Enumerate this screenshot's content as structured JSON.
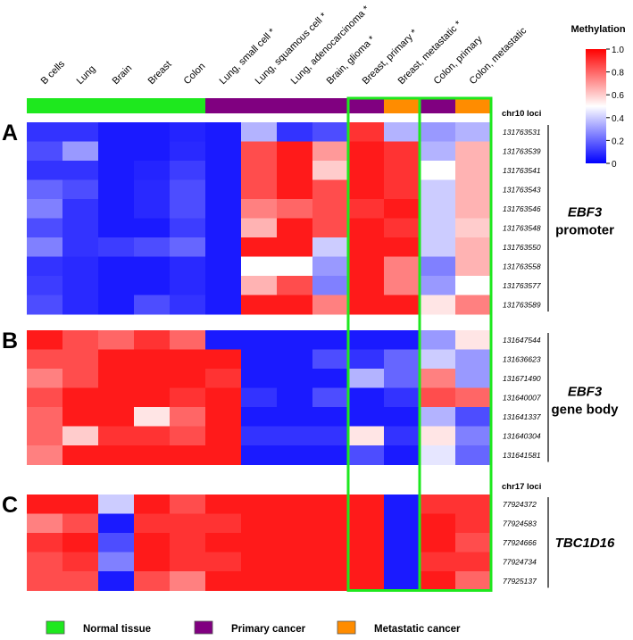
{
  "chart_data": {
    "type": "heatmap",
    "columns": [
      "B cells",
      "Lung",
      "Brain",
      "Breast",
      "Colon",
      "Lung, small cell *",
      "Lung, squamous cell *",
      "Lung, adenocarcinoma *",
      "Brain, glioma *",
      "Breast, primary *",
      "Breast, metastatic *",
      "Colon, primary",
      "Colon, metastatic"
    ],
    "column_groups": [
      "normal",
      "normal",
      "normal",
      "normal",
      "normal",
      "primary",
      "primary",
      "primary",
      "primary",
      "primary",
      "metastatic",
      "primary",
      "metastatic"
    ],
    "colorbar": {
      "title": "Methylation",
      "min": 0,
      "max": 1,
      "ticks": [
        "1.0",
        "0.8",
        "0.6",
        "0.4",
        "0.2",
        "0"
      ],
      "colors": [
        "#0000ff",
        "#ffffff",
        "#ff0000"
      ]
    },
    "legend": [
      {
        "label": "Normal tissue",
        "color": "#1ee81e"
      },
      {
        "label": "Primary cancer",
        "color": "#800080"
      },
      {
        "label": "Metastatic cancer",
        "color": "#ff8c00"
      }
    ],
    "headers": {
      "chr10": "chr10 loci",
      "chr17": "chr17 loci"
    },
    "panels": [
      {
        "letter": "A",
        "gene": "EBF3",
        "gene_sub": "promoter",
        "loci": [
          "131763531",
          "131763539",
          "131763541",
          "131763543",
          "131763546",
          "131763548",
          "131763550",
          "131763558",
          "131763577",
          "131763589"
        ],
        "values": [
          [
            0.1,
            0.1,
            0.05,
            0.05,
            0.07,
            0.05,
            0.35,
            0.1,
            0.15,
            0.9,
            0.35,
            0.3,
            0.35
          ],
          [
            0.15,
            0.3,
            0.05,
            0.05,
            0.08,
            0.05,
            0.85,
            0.95,
            0.7,
            0.95,
            0.9,
            0.35,
            0.65
          ],
          [
            0.1,
            0.1,
            0.05,
            0.07,
            0.12,
            0.05,
            0.85,
            0.95,
            0.6,
            0.95,
            0.9,
            0.5,
            0.65
          ],
          [
            0.2,
            0.15,
            0.05,
            0.08,
            0.15,
            0.05,
            0.85,
            0.95,
            0.85,
            0.95,
            0.9,
            0.4,
            0.65
          ],
          [
            0.25,
            0.1,
            0.05,
            0.08,
            0.15,
            0.05,
            0.75,
            0.8,
            0.85,
            0.9,
            0.95,
            0.4,
            0.65
          ],
          [
            0.15,
            0.1,
            0.05,
            0.05,
            0.12,
            0.05,
            0.65,
            0.95,
            0.85,
            0.95,
            0.9,
            0.4,
            0.6
          ],
          [
            0.25,
            0.1,
            0.12,
            0.15,
            0.2,
            0.05,
            0.95,
            0.95,
            0.4,
            0.95,
            0.95,
            0.4,
            0.65
          ],
          [
            0.1,
            0.08,
            0.05,
            0.05,
            0.08,
            0.05,
            0.5,
            0.5,
            0.3,
            0.95,
            0.75,
            0.25,
            0.65
          ],
          [
            0.12,
            0.08,
            0.05,
            0.05,
            0.08,
            0.05,
            0.65,
            0.85,
            0.25,
            0.95,
            0.75,
            0.3,
            0.5
          ],
          [
            0.15,
            0.08,
            0.05,
            0.15,
            0.1,
            0.05,
            0.95,
            0.95,
            0.75,
            0.95,
            0.95,
            0.55,
            0.75
          ]
        ]
      },
      {
        "letter": "B",
        "gene": "EBF3",
        "gene_sub": "gene body",
        "loci": [
          "131647544",
          "131636623",
          "131671490",
          "131640007",
          "131641337",
          "131640304",
          "131641581"
        ],
        "values": [
          [
            0.95,
            0.85,
            0.8,
            0.9,
            0.8,
            0.05,
            0.05,
            0.05,
            0.05,
            0.05,
            0.05,
            0.3,
            0.55
          ],
          [
            0.85,
            0.85,
            0.95,
            0.95,
            0.95,
            0.95,
            0.05,
            0.05,
            0.15,
            0.1,
            0.2,
            0.4,
            0.3
          ],
          [
            0.75,
            0.85,
            0.95,
            0.95,
            0.95,
            0.9,
            0.05,
            0.05,
            0.05,
            0.35,
            0.2,
            0.75,
            0.3
          ],
          [
            0.85,
            0.95,
            0.95,
            0.95,
            0.9,
            0.95,
            0.1,
            0.05,
            0.15,
            0.05,
            0.1,
            0.85,
            0.8
          ],
          [
            0.8,
            0.95,
            0.95,
            0.55,
            0.8,
            0.95,
            0.05,
            0.05,
            0.05,
            0.05,
            0.05,
            0.35,
            0.15
          ],
          [
            0.8,
            0.6,
            0.9,
            0.9,
            0.85,
            0.95,
            0.1,
            0.1,
            0.1,
            0.55,
            0.1,
            0.55,
            0.25
          ],
          [
            0.75,
            0.95,
            0.95,
            0.95,
            0.95,
            0.95,
            0.05,
            0.05,
            0.05,
            0.15,
            0.05,
            0.45,
            0.2
          ]
        ]
      },
      {
        "letter": "C",
        "gene": "TBC1D16",
        "gene_sub": "",
        "loci": [
          "77924372",
          "77924583",
          "77924666",
          "77924734",
          "77925137"
        ],
        "values": [
          [
            0.95,
            0.95,
            0.4,
            0.95,
            0.85,
            0.95,
            0.95,
            0.95,
            0.95,
            0.95,
            0.05,
            0.9,
            0.9
          ],
          [
            0.75,
            0.85,
            0.05,
            0.9,
            0.9,
            0.9,
            0.95,
            0.95,
            0.95,
            0.95,
            0.05,
            0.95,
            0.9
          ],
          [
            0.9,
            0.95,
            0.15,
            0.95,
            0.9,
            0.95,
            0.95,
            0.95,
            0.95,
            0.95,
            0.05,
            0.95,
            0.85
          ],
          [
            0.85,
            0.9,
            0.25,
            0.95,
            0.9,
            0.9,
            0.95,
            0.95,
            0.95,
            0.95,
            0.05,
            0.9,
            0.9
          ],
          [
            0.85,
            0.85,
            0.05,
            0.85,
            0.75,
            0.95,
            0.95,
            0.95,
            0.95,
            0.95,
            0.05,
            0.95,
            0.8
          ]
        ]
      }
    ]
  }
}
